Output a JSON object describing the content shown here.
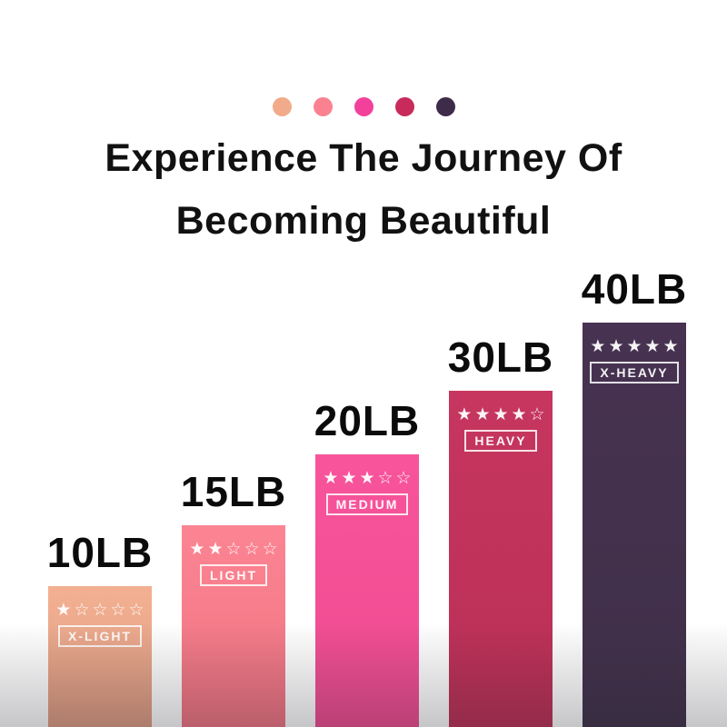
{
  "meta": {
    "background_color": "#FFFFFF",
    "bottom_fade_color": "rgba(35,35,45,0.26)"
  },
  "title": {
    "line1": "Experience The Journey Of",
    "line2": "Becoming Beautiful"
  },
  "palette_dots": [
    {
      "name": "x-light",
      "color": "#F1AB8B"
    },
    {
      "name": "light",
      "color": "#FA8290"
    },
    {
      "name": "medium",
      "color": "#F2419B"
    },
    {
      "name": "heavy",
      "color": "#C82A5C"
    },
    {
      "name": "x-heavy",
      "color": "#3E2B4A"
    }
  ],
  "chart_data": {
    "type": "bar",
    "title": "Experience The Journey Of Becoming Beautiful",
    "categories": [
      "X-LIGHT",
      "LIGHT",
      "MEDIUM",
      "HEAVY",
      "X-HEAVY"
    ],
    "values": [
      10,
      15,
      20,
      30,
      40
    ],
    "unit": "LB",
    "value_labels": [
      "10LB",
      "15LB",
      "20LB",
      "30LB",
      "40LB"
    ],
    "star_ratings": [
      1,
      2,
      3,
      4,
      5
    ],
    "max_stars": 5,
    "bar_colors": [
      "#F2AC8E",
      "#FB8190",
      "#F7529B",
      "#C4345F",
      "#463250"
    ],
    "bar_order": "ascending left to right",
    "grid": false,
    "axes_visible": false,
    "legend_position": "none"
  },
  "bars": [
    {
      "weight": "10LB",
      "label": "X-LIGHT",
      "stars": 1,
      "stars_display": "★☆☆☆☆",
      "color_top": "#F3B092",
      "color_bottom": "#DE9C81"
    },
    {
      "weight": "15LB",
      "label": "LIGHT",
      "stars": 2,
      "stars_display": "★★☆☆☆",
      "color_top": "#FC8593",
      "color_bottom": "#F07381"
    },
    {
      "weight": "20LB",
      "label": "MEDIUM",
      "stars": 3,
      "stars_display": "★★★☆☆",
      "color_top": "#F8549C",
      "color_bottom": "#EF4B90"
    },
    {
      "weight": "30LB",
      "label": "HEAVY",
      "stars": 4,
      "stars_display": "★★★★☆",
      "color_top": "#C6365F",
      "color_bottom": "#BB2F55"
    },
    {
      "weight": "40LB",
      "label": "X-HEAVY",
      "stars": 5,
      "stars_display": "★★★★★",
      "color_top": "#473251",
      "color_bottom": "#403049"
    }
  ]
}
